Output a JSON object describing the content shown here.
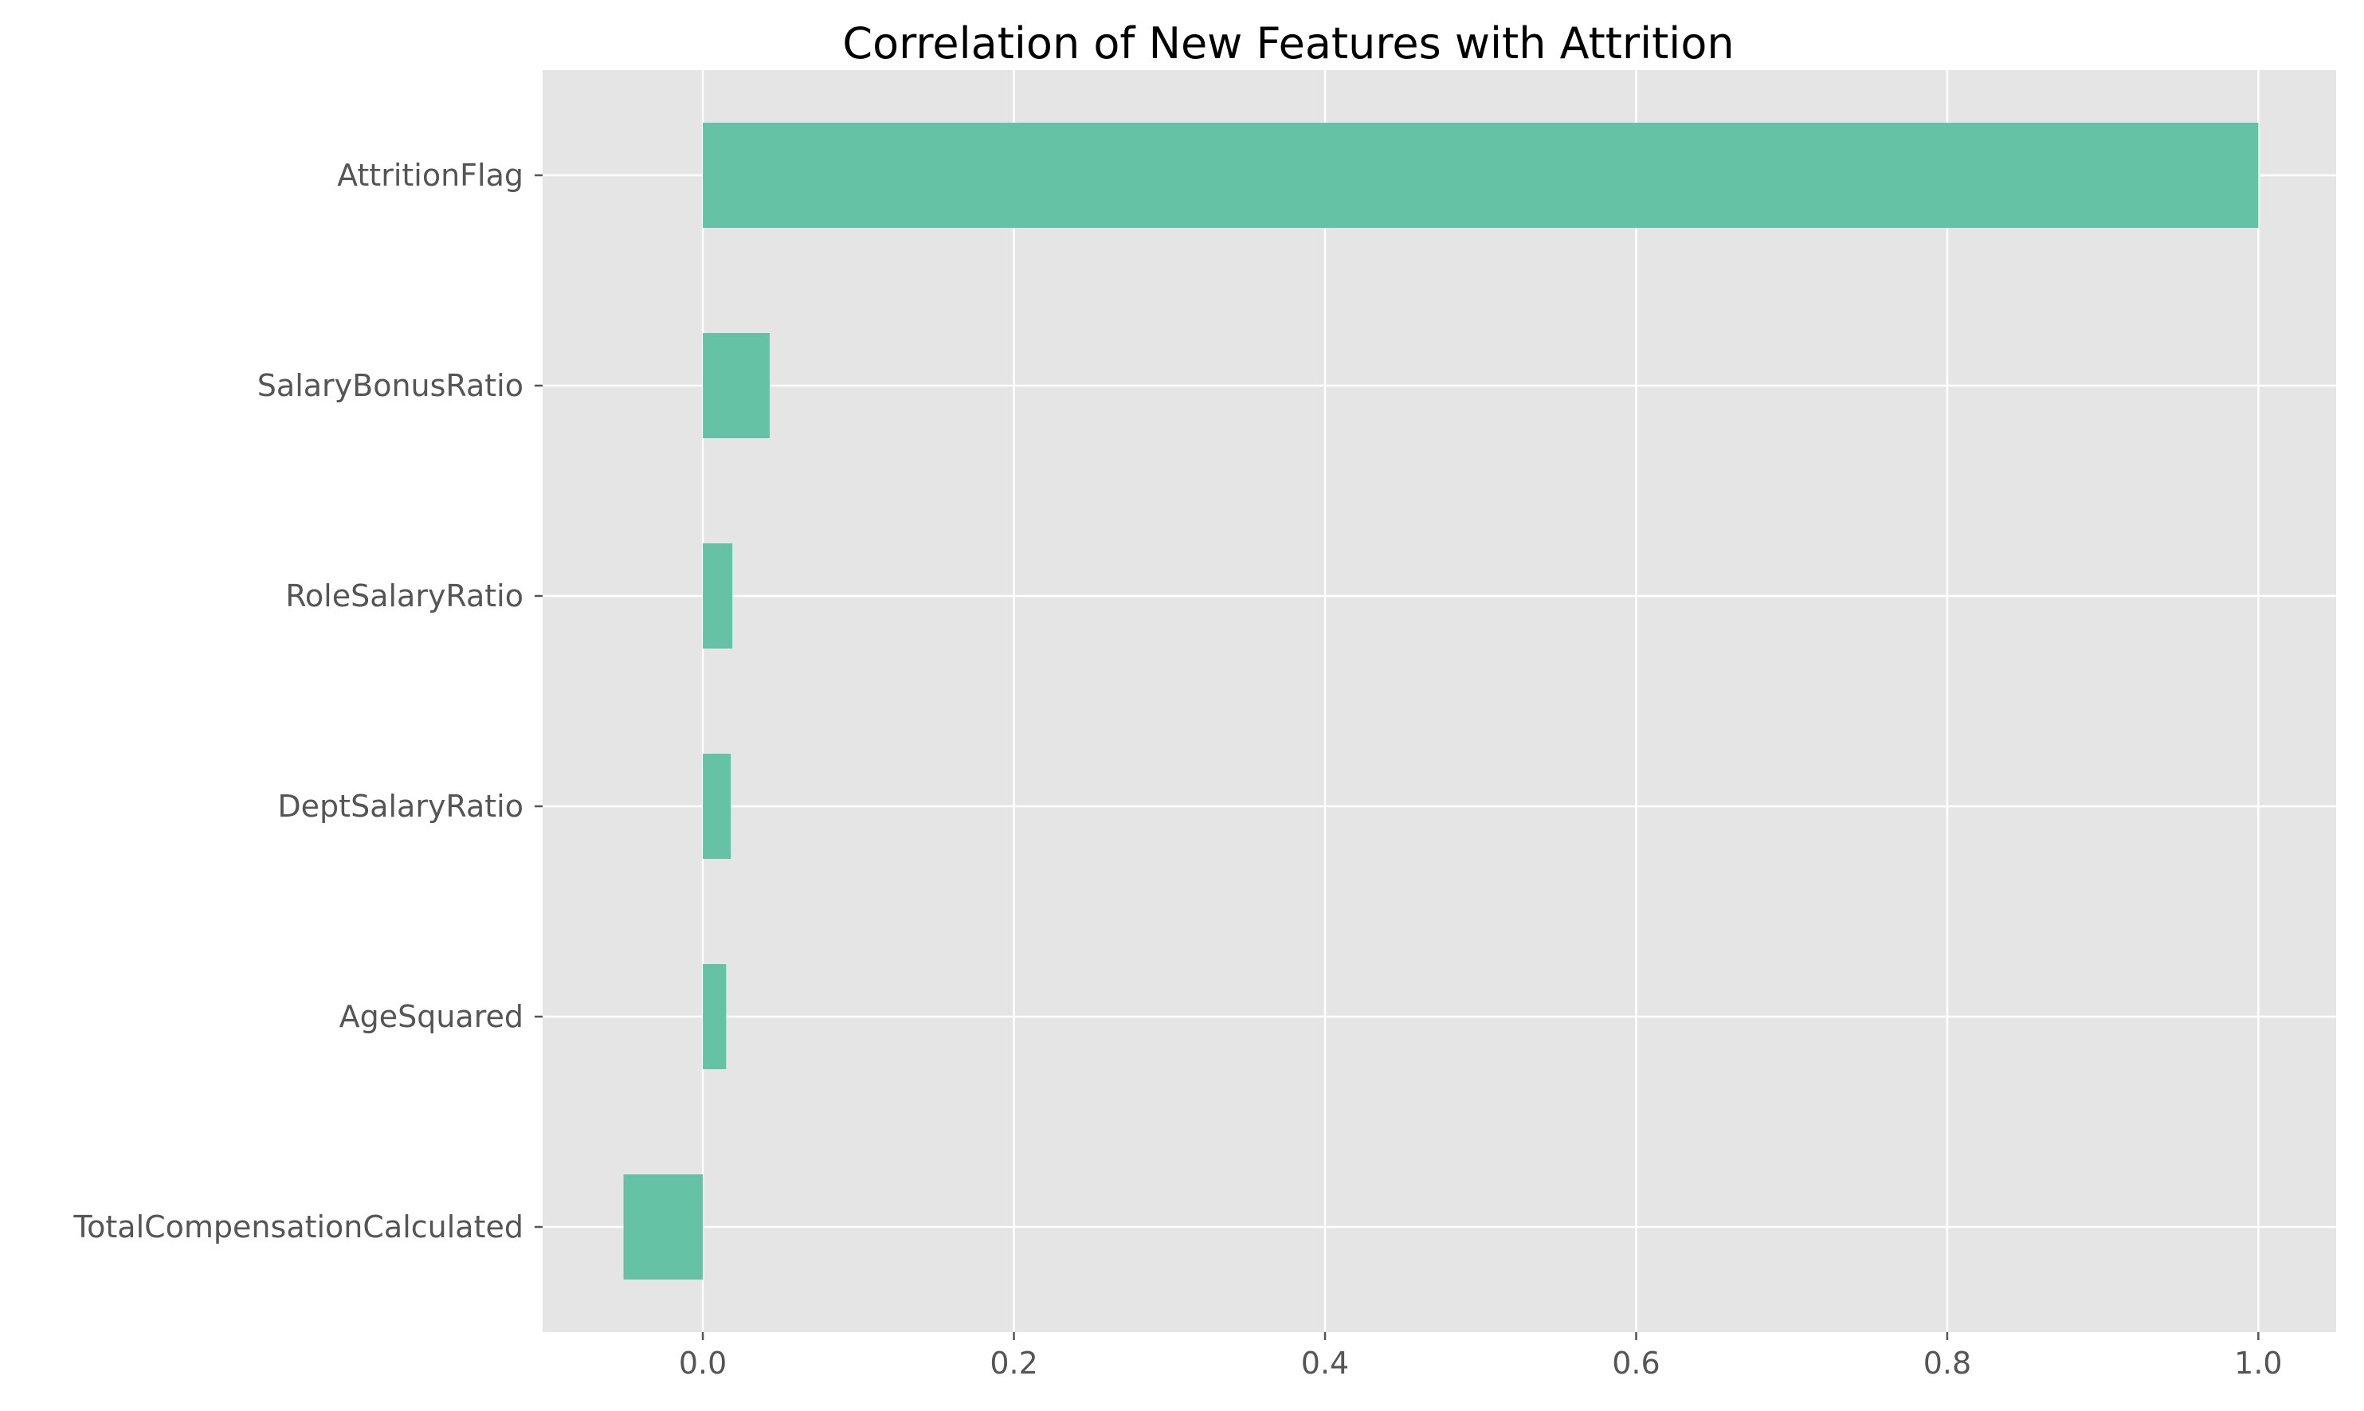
{
  "chart_data": {
    "type": "bar",
    "orientation": "horizontal",
    "title": "Correlation of New Features with Attrition",
    "xlabel": "",
    "ylabel": "",
    "categories": [
      "AttritionFlag",
      "SalaryBonusRatio",
      "RoleSalaryRatio",
      "DeptSalaryRatio",
      "AgeSquared",
      "TotalCompensationCalculated"
    ],
    "values": [
      1.0,
      0.043,
      0.019,
      0.018,
      0.015,
      -0.051
    ],
    "xlim": [
      -0.103,
      1.05
    ],
    "xticks": [
      0.0,
      0.2,
      0.4,
      0.6,
      0.8,
      1.0
    ],
    "xtick_labels": [
      "0.0",
      "0.2",
      "0.4",
      "0.6",
      "0.8",
      "1.0"
    ],
    "grid": true,
    "bar_color": "#66c2a5",
    "background_color": "#e5e5e5",
    "grid_color": "#ffffff"
  }
}
